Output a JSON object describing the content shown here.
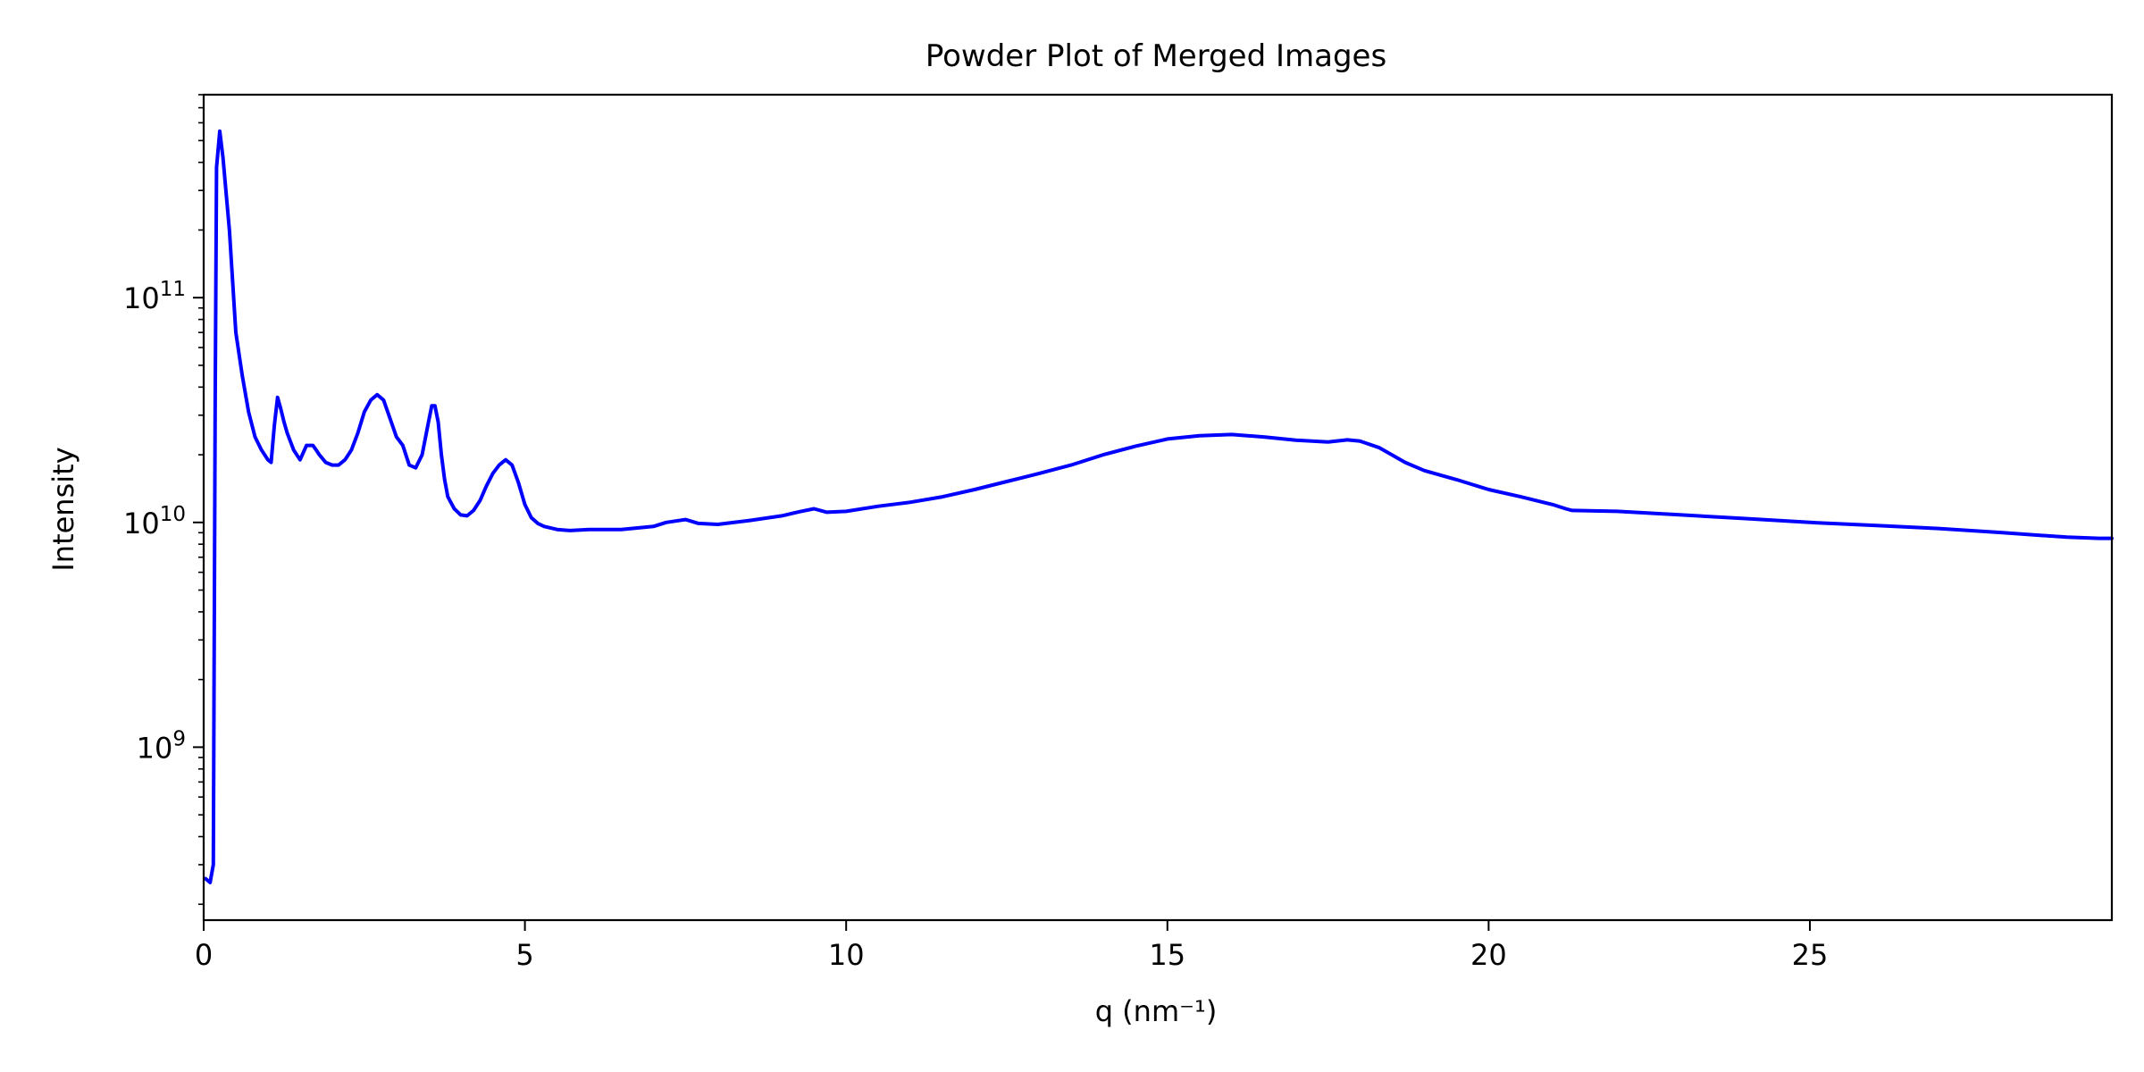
{
  "chart_data": {
    "type": "line",
    "title": "Powder Plot of Merged Images",
    "xlabel": "q (nm⁻¹)",
    "ylabel": "Intensity",
    "xlim": [
      0,
      29.7
    ],
    "ylim": [
      170000000,
      800000000000
    ],
    "yscale": "log",
    "grid": false,
    "line_color": "#0000ff",
    "x_ticks": [
      0,
      5,
      10,
      15,
      20,
      25
    ],
    "x_tick_labels": [
      "0",
      "5",
      "10",
      "15",
      "20",
      "25"
    ],
    "y_ticks": [
      1000000000,
      10000000000,
      100000000000
    ],
    "y_tick_labels": [
      {
        "base": "10",
        "exp": "9"
      },
      {
        "base": "10",
        "exp": "10"
      },
      {
        "base": "10",
        "exp": "11"
      }
    ],
    "series": [
      {
        "x": [
          0.03,
          0.1,
          0.15,
          0.18,
          0.2,
          0.25,
          0.3,
          0.4,
          0.5,
          0.6,
          0.7,
          0.8,
          0.9,
          1.0,
          1.05,
          1.1,
          1.15,
          1.2,
          1.25,
          1.3,
          1.4,
          1.5,
          1.6,
          1.7,
          1.75,
          1.8,
          1.9,
          2.0,
          2.1,
          2.2,
          2.3,
          2.4,
          2.5,
          2.6,
          2.7,
          2.8,
          2.9,
          3.0,
          3.1,
          3.2,
          3.3,
          3.4,
          3.5,
          3.55,
          3.6,
          3.65,
          3.7,
          3.75,
          3.8,
          3.9,
          4.0,
          4.1,
          4.2,
          4.3,
          4.4,
          4.5,
          4.6,
          4.7,
          4.8,
          4.9,
          5.0,
          5.1,
          5.2,
          5.3,
          5.5,
          5.7,
          6.0,
          6.5,
          7.0,
          7.2,
          7.5,
          7.7,
          8.0,
          8.5,
          9.0,
          9.3,
          9.5,
          9.7,
          10.0,
          10.5,
          11.0,
          11.5,
          12.0,
          12.5,
          13.0,
          13.5,
          14.0,
          14.5,
          15.0,
          15.5,
          16.0,
          16.5,
          17.0,
          17.5,
          17.8,
          18.0,
          18.3,
          18.7,
          19.0,
          19.5,
          20.0,
          20.5,
          21.0,
          21.2,
          21.3,
          22.0,
          23.0,
          24.0,
          25.0,
          26.0,
          27.0,
          28.0,
          29.0,
          29.5,
          29.7
        ],
        "y": [
          260000000,
          250000000,
          300000000,
          36000000000,
          380000000000,
          550000000000,
          420000000000,
          200000000000,
          70000000000,
          45000000000,
          31000000000,
          24000000000,
          21000000000,
          19000000000,
          18500000000,
          27000000000,
          36000000000,
          32000000000,
          28000000000,
          25000000000,
          21000000000,
          19000000000,
          22000000000,
          22000000000,
          21000000000,
          20000000000,
          18500000000,
          18000000000,
          18000000000,
          19000000000,
          21000000000,
          25000000000,
          31000000000,
          35000000000,
          37000000000,
          35000000000,
          29000000000,
          24000000000,
          22000000000,
          18000000000,
          17500000000,
          20000000000,
          28000000000,
          33000000000,
          33000000000,
          28000000000,
          20000000000,
          15500000000,
          13000000000,
          11500000000,
          10800000000,
          10700000000,
          11300000000,
          12500000000,
          14500000000,
          16500000000,
          18000000000,
          19000000000,
          18000000000,
          15000000000,
          12000000000,
          10500000000,
          9900000000,
          9600000000,
          9300000000,
          9200000000,
          9300000000,
          9300000000,
          9600000000,
          10000000000,
          10300000000,
          9900000000,
          9800000000,
          10200000000,
          10700000000,
          11200000000,
          11500000000,
          11100000000,
          11200000000,
          11800000000,
          12300000000,
          13000000000,
          14000000000,
          15200000000,
          16500000000,
          18000000000,
          20000000000,
          21800000000,
          23500000000,
          24300000000,
          24600000000,
          24000000000,
          23200000000,
          22800000000,
          23300000000,
          23000000000,
          21500000000,
          18500000000,
          17000000000,
          15500000000,
          14000000000,
          13000000000,
          12000000000,
          11500000000,
          11300000000,
          11200000000,
          10800000000,
          10400000000,
          10000000000,
          9700000000,
          9400000000,
          9000000000,
          8600000000,
          8500000000,
          8500000000
        ]
      }
    ]
  }
}
